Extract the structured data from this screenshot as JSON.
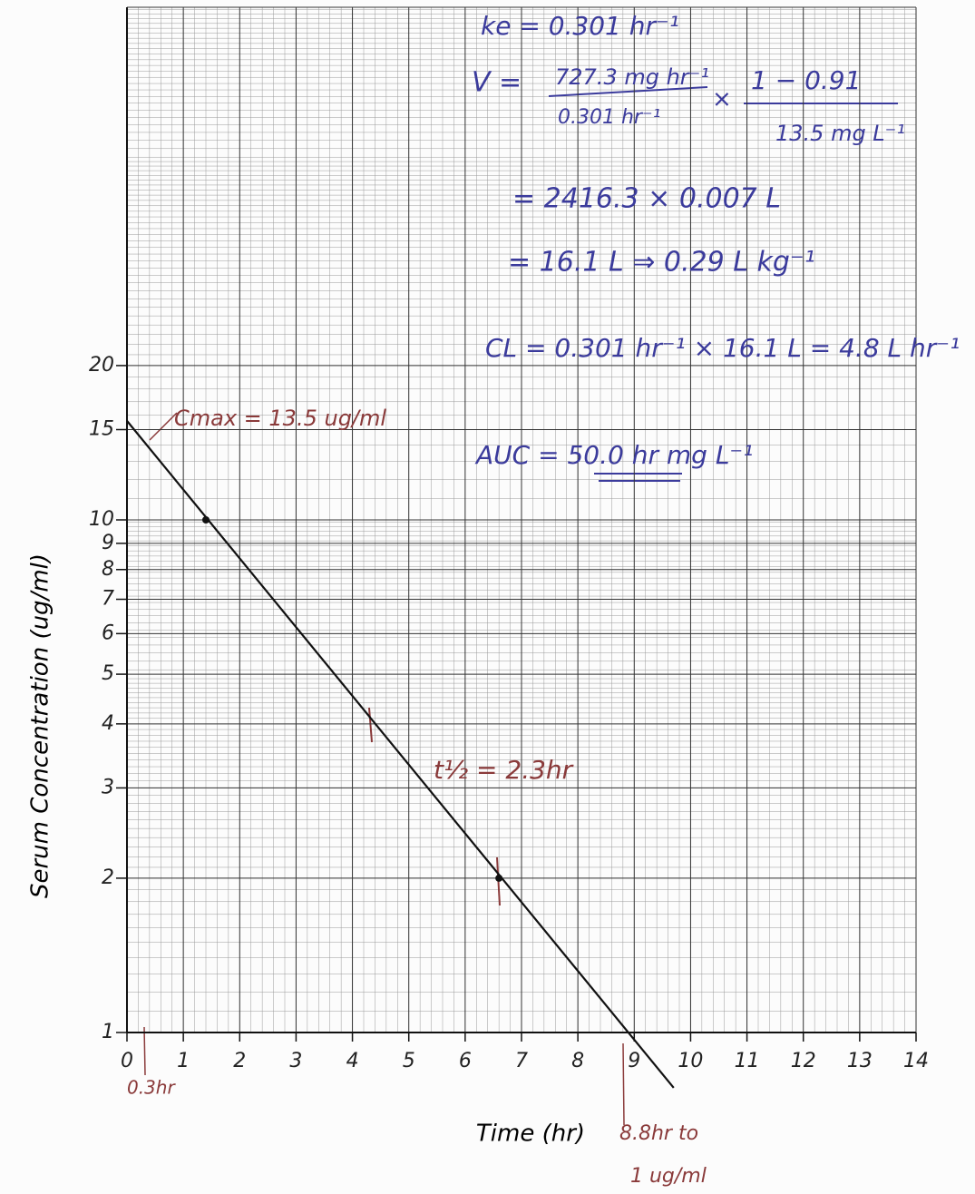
{
  "chart_data": {
    "type": "line",
    "x_label": "Time (hr)",
    "y_label": "Serum Concentration (ug/ml)",
    "log_y": true,
    "grid": true,
    "xlim": [
      0,
      14
    ],
    "xticks": [
      0,
      1,
      2,
      3,
      4,
      5,
      6,
      7,
      8,
      9,
      10,
      11,
      12,
      13,
      14
    ],
    "ylim": [
      1,
      100
    ],
    "yticks": [
      1,
      2,
      3,
      4,
      5,
      6,
      7,
      8,
      9,
      10,
      15,
      20
    ],
    "line": {
      "x": [
        0,
        9.7
      ],
      "values": [
        15.6,
        0.78
      ],
      "color": "#111111"
    },
    "points": {
      "x": [
        1.4,
        6.6
      ],
      "values": [
        10,
        2
      ],
      "color": "#111111"
    },
    "annotations": [
      {
        "text": "ke = 0.301 hr⁻¹",
        "color": "#3b3b9c"
      },
      {
        "text": "V =",
        "color": "#3b3b9c"
      },
      {
        "text": "727.3 mg hr⁻¹",
        "color": "#3b3b9c"
      },
      {
        "text": "0.301 hr⁻¹",
        "color": "#3b3b9c"
      },
      {
        "text": "×",
        "color": "#3b3b9c"
      },
      {
        "text": "1 − 0.91",
        "color": "#3b3b9c"
      },
      {
        "text": "13.5 mg L⁻¹",
        "color": "#3b3b9c"
      },
      {
        "text": "= 2416.3 × 0.007 L",
        "color": "#3b3b9c"
      },
      {
        "text": "= 16.1 L ⇒ 0.29 L kg⁻¹",
        "color": "#3b3b9c"
      },
      {
        "text": "CL = 0.301 hr⁻¹ × 16.1 L = 4.8 L hr⁻¹",
        "color": "#3b3b9c"
      },
      {
        "text": "AUC = 50.0 hr mg L⁻¹",
        "color": "#3b3b9c"
      },
      {
        "text": "Cmax = 13.5 ug/ml",
        "color": "#8a3a3a"
      },
      {
        "text": "t½ = 2.3hr",
        "color": "#8a3a3a"
      },
      {
        "text": "0.3hr",
        "color": "#8a3a3a"
      },
      {
        "text": "8.8hr to",
        "color": "#8a3a3a"
      },
      {
        "text": "1 ug/ml",
        "color": "#8a3a3a"
      }
    ]
  }
}
